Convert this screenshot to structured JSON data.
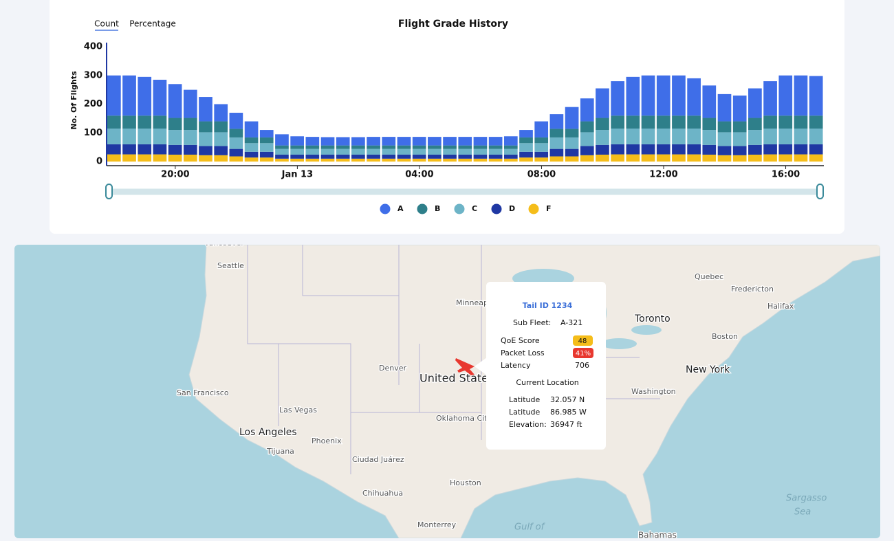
{
  "tabs": [
    "Count",
    "Percentage"
  ],
  "chart_data": {
    "type": "stacked-bar",
    "title": "Flight Grade History",
    "y_label": "No. Of Flights",
    "categories": [
      null,
      null,
      null,
      null,
      "20:00",
      null,
      null,
      null,
      null,
      null,
      null,
      null,
      "Jan 13",
      null,
      null,
      null,
      null,
      null,
      null,
      null,
      "04:00",
      null,
      null,
      null,
      null,
      null,
      null,
      null,
      "08:00",
      null,
      null,
      null,
      null,
      null,
      null,
      null,
      "12:00",
      null,
      null,
      null,
      null,
      null,
      null,
      null,
      "16:00",
      null,
      null
    ],
    "series": [
      {
        "name": "A",
        "color": "#3f6ee8",
        "values": [
          140,
          140,
          135,
          125,
          118,
          98,
          85,
          60,
          56,
          56,
          26,
          39,
          32,
          30,
          29,
          29,
          29,
          30,
          30,
          30,
          30,
          30,
          30,
          30,
          30,
          30,
          32,
          26,
          56,
          51,
          76,
          80,
          103,
          120,
          135,
          140,
          140,
          140,
          130,
          113,
          95,
          90,
          103,
          120,
          140,
          140,
          138
        ]
      },
      {
        "name": "B",
        "color": "#2e7f8a",
        "values": [
          45,
          45,
          45,
          45,
          42,
          42,
          38,
          38,
          30,
          20,
          20,
          12,
          12,
          12,
          12,
          12,
          12,
          12,
          12,
          12,
          12,
          12,
          12,
          12,
          12,
          12,
          12,
          20,
          20,
          30,
          30,
          38,
          42,
          45,
          45,
          45,
          45,
          45,
          45,
          42,
          38,
          38,
          42,
          45,
          45,
          45,
          45
        ]
      },
      {
        "name": "C",
        "color": "#6db4c7",
        "values": [
          55,
          55,
          55,
          55,
          52,
          52,
          48,
          48,
          40,
          30,
          30,
          20,
          20,
          20,
          20,
          20,
          20,
          20,
          20,
          20,
          20,
          20,
          20,
          20,
          20,
          20,
          20,
          30,
          30,
          40,
          40,
          48,
          52,
          55,
          55,
          55,
          55,
          55,
          55,
          52,
          48,
          48,
          52,
          55,
          55,
          55,
          55
        ]
      },
      {
        "name": "D",
        "color": "#1f38a3",
        "values": [
          35,
          35,
          35,
          35,
          34,
          34,
          32,
          32,
          26,
          20,
          20,
          14,
          14,
          14,
          14,
          14,
          14,
          14,
          14,
          14,
          14,
          14,
          14,
          14,
          14,
          14,
          14,
          20,
          20,
          26,
          26,
          32,
          34,
          35,
          35,
          35,
          35,
          35,
          35,
          34,
          32,
          32,
          34,
          35,
          35,
          35,
          35
        ]
      },
      {
        "name": "F",
        "color": "#f5bd1a",
        "values": [
          25,
          25,
          25,
          25,
          24,
          24,
          22,
          22,
          18,
          14,
          14,
          10,
          10,
          10,
          10,
          10,
          10,
          10,
          10,
          10,
          10,
          10,
          10,
          10,
          10,
          10,
          10,
          14,
          14,
          18,
          18,
          22,
          24,
          25,
          25,
          25,
          25,
          25,
          25,
          24,
          22,
          22,
          24,
          25,
          25,
          25,
          25
        ]
      }
    ],
    "ylim": [
      0,
      400
    ],
    "yticks": [
      0,
      100,
      200,
      300,
      400
    ],
    "grid": false,
    "legend": "bottom"
  },
  "map": {
    "labels": [
      "Vancouver",
      "Seattle",
      "San Francisco",
      "Las Vegas",
      "Los Angeles",
      "Tijuana",
      "Phoenix",
      "Denver",
      "Ciudad Juárez",
      "Chihuahua",
      "Houston",
      "Monterrey",
      "Oklahoma City",
      "United States",
      "Minneap",
      "Toronto",
      "Quebec",
      "Fredericton",
      "Halifax",
      "Boston",
      "New York",
      "Washington",
      "Bahamas",
      "Gulf of",
      "Sargasso",
      "Sea"
    ]
  },
  "tooltip": {
    "title": "Tail ID 1234",
    "sub_fleet_label": "Sub Fleet:",
    "sub_fleet": "A-321",
    "qoe_label": "QoE Score",
    "qoe": "48",
    "packet_loss_label": "Packet Loss",
    "packet_loss": "41%",
    "latency_label": "Latency",
    "latency": "706",
    "location_title": "Current Location",
    "lat_label": "Latitude",
    "lat": "32.057 N",
    "lon_label": "Latitude",
    "lon": "86.985 W",
    "elev_label": "Elevation:",
    "elev": "36947 ft"
  }
}
